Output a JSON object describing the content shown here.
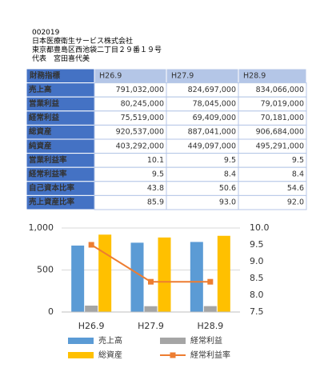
{
  "header": {
    "code": "002019",
    "company": "日本医療衛生サービス株式会社",
    "address": "東京都豊島区西池袋二丁目２９番１９号",
    "representative": "代表　宮田喜代美"
  },
  "table": {
    "columns": [
      "財務指標",
      "H26.9",
      "H27.9",
      "H28.9"
    ],
    "rows": [
      [
        "売上高",
        "791,032,000",
        "824,697,000",
        "834,066,000"
      ],
      [
        "営業利益",
        "80,245,000",
        "78,045,000",
        "79,019,000"
      ],
      [
        "経常利益",
        "75,519,000",
        "69,409,000",
        "70,181,000"
      ],
      [
        "総資産",
        "920,537,000",
        "887,041,000",
        "906,684,000"
      ],
      [
        "純資産",
        "403,292,000",
        "449,097,000",
        "495,291,000"
      ],
      [
        "営業利益率",
        "10.1",
        "9.5",
        "9.5"
      ],
      [
        "経常利益率",
        "9.5",
        "8.4",
        "8.4"
      ],
      [
        "自己資本比率",
        "43.8",
        "50.6",
        "54.6"
      ],
      [
        "売上資産比率",
        "85.9",
        "93.0",
        "92.0"
      ]
    ]
  },
  "chart_data": {
    "type": "bar",
    "categories": [
      "H26.9",
      "H27.9",
      "H28.9"
    ],
    "series": [
      {
        "name": "売上高",
        "color": "#5b9bd5",
        "values": [
          791,
          825,
          834
        ]
      },
      {
        "name": "経常利益",
        "color": "#a5a5a5",
        "values": [
          76,
          69,
          70
        ]
      },
      {
        "name": "総資産",
        "color": "#ffc000",
        "values": [
          921,
          887,
          907
        ]
      },
      {
        "name": "経常利益率",
        "color": "#ed7d31",
        "values": [
          9.5,
          8.4,
          8.4
        ],
        "type": "line",
        "axis": "y2"
      }
    ],
    "ylim": [
      0,
      1000
    ],
    "yticks": [
      0,
      500,
      {
        "value": 1000,
        "label": "1,000"
      }
    ],
    "y2lim": [
      7.5,
      10
    ],
    "y2ticks": [
      7.5,
      {
        "value": 8,
        "label": "8.0"
      },
      8.5,
      {
        "value": 9,
        "label": "9.0"
      },
      9.5,
      {
        "value": 10,
        "label": "10.0"
      }
    ],
    "grid": true
  }
}
